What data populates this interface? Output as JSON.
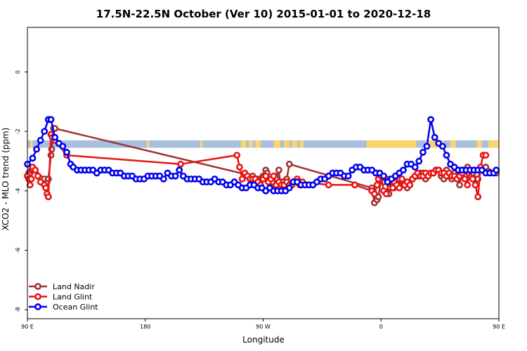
{
  "chart_data": {
    "type": "line",
    "title": "17.5N-22.5N October (Ver 10)   2015-01-01 to 2020-12-18",
    "xlabel": "Longitude",
    "ylabel": "XCO2 - MLO trend (ppm)",
    "xlim": [
      90,
      450
    ],
    "ylim": [
      -8.3,
      1.5
    ],
    "x_ticks": [
      {
        "value": 90,
        "label": "90 E"
      },
      {
        "value": 180,
        "label": "180"
      },
      {
        "value": 270,
        "label": "90 W"
      },
      {
        "value": 360,
        "label": "0"
      },
      {
        "value": 450,
        "label": "90 E"
      }
    ],
    "extra_x_ticks": [
      450
    ],
    "extra_x_labels": [
      "180"
    ],
    "y_ticks": [
      0,
      -2,
      -4,
      -6,
      -8
    ],
    "grid": false,
    "legend_position": "bottom-left",
    "land_mask": {
      "y_range": [
        -2.55,
        -2.3
      ],
      "ocean_color": "#a8bfe0",
      "land_color": "#fbd46e",
      "land_segments": [
        [
          92,
          94
        ],
        [
          181,
          183
        ],
        [
          222,
          224
        ],
        [
          253,
          257
        ],
        [
          259,
          262
        ],
        [
          264,
          268
        ],
        [
          278,
          283
        ],
        [
          286,
          290
        ],
        [
          292,
          296
        ],
        [
          298,
          301
        ],
        [
          349,
          387
        ],
        [
          394,
          408
        ],
        [
          413,
          417
        ],
        [
          433,
          437
        ],
        [
          442,
          450
        ]
      ]
    },
    "series": [
      {
        "name": "Land Nadir",
        "color": "#a03232",
        "x": [
          90,
          91,
          92,
          93,
          94,
          96,
          103,
          105,
          106,
          108,
          108.5,
          110,
          111,
          262,
          263,
          265,
          266,
          267,
          268,
          269,
          270,
          271,
          272,
          273,
          275,
          276,
          277,
          279,
          280,
          282,
          283,
          284,
          285,
          286,
          288,
          290,
          353,
          355,
          357,
          358,
          360,
          362,
          364,
          366,
          367,
          369,
          370,
          372,
          374,
          376,
          378,
          380,
          382,
          384,
          386,
          388,
          390,
          392,
          394,
          396,
          398,
          400,
          402,
          404,
          406,
          408,
          410,
          412,
          414,
          416,
          418,
          420,
          422,
          424,
          426,
          428,
          430,
          432,
          434,
          436,
          440,
          448
        ],
        "y": [
          -3.5,
          -3.4,
          -3.4,
          -3.3,
          -3.3,
          -3.3,
          -3.6,
          -3.7,
          -3.6,
          -2.8,
          -2.6,
          -1.9,
          -1.9,
          -3.5,
          -3.6,
          -3.6,
          -3.7,
          -3.6,
          -3.8,
          -3.6,
          -3.5,
          -3.5,
          -3.3,
          -3.4,
          -3.6,
          -3.8,
          -3.7,
          -3.5,
          -3.6,
          -3.3,
          -3.7,
          -3.8,
          -3.7,
          -3.8,
          -3.6,
          -3.1,
          -3.9,
          -4.4,
          -4.3,
          -4.2,
          -3.6,
          -3.7,
          -3.6,
          -4.1,
          -3.9,
          -3.8,
          -3.9,
          -3.7,
          -3.6,
          -3.8,
          -3.7,
          -3.9,
          -3.8,
          -3.6,
          -3.5,
          -3.5,
          -3.4,
          -3.4,
          -3.6,
          -3.5,
          -3.4,
          -3.4,
          -3.3,
          -3.3,
          -3.5,
          -3.6,
          -3.3,
          -3.5,
          -3.6,
          -3.4,
          -3.6,
          -3.8,
          -3.3,
          -3.5,
          -3.2,
          -3.3,
          -3.4,
          -3.6,
          -3.6,
          -3.3,
          -3.2,
          -3.4
        ]
      },
      {
        "name": "Land Glint",
        "color": "#e81414",
        "x": [
          90,
          91,
          92,
          93,
          94,
          96,
          98,
          100,
          103,
          104,
          105,
          106,
          108,
          109,
          111,
          120,
          207,
          250,
          252,
          254,
          256,
          258,
          260,
          262,
          264,
          266,
          268,
          270,
          272,
          274,
          276,
          278,
          280,
          282,
          284,
          286,
          288,
          290,
          292,
          294,
          296,
          298,
          300,
          320,
          340,
          353,
          355,
          357,
          358,
          360,
          362,
          364,
          366,
          367,
          369,
          370,
          372,
          374,
          376,
          378,
          380,
          382,
          384,
          386,
          388,
          390,
          392,
          394,
          396,
          398,
          400,
          402,
          404,
          406,
          408,
          410,
          412,
          414,
          416,
          418,
          420,
          422,
          424,
          426,
          428,
          430,
          432,
          434,
          436,
          438,
          440
        ],
        "y": [
          -3.5,
          -3.6,
          -3.8,
          -3.6,
          -3.2,
          -3.3,
          -3.5,
          -3.7,
          -3.8,
          -3.9,
          -4.1,
          -4.2,
          -2.1,
          -2.2,
          -2.3,
          -2.8,
          -3.1,
          -2.8,
          -3.2,
          -3.6,
          -3.4,
          -3.5,
          -3.6,
          -3.6,
          -3.6,
          -3.7,
          -3.8,
          -3.6,
          -3.5,
          -3.7,
          -3.6,
          -3.5,
          -3.8,
          -3.7,
          -3.8,
          -3.8,
          -3.7,
          -3.8,
          -3.8,
          -3.7,
          -3.6,
          -3.8,
          -3.7,
          -3.8,
          -3.8,
          -4.0,
          -4.1,
          -3.8,
          -3.6,
          -3.5,
          -4.0,
          -4.1,
          -3.7,
          -3.6,
          -3.9,
          -3.7,
          -3.8,
          -3.9,
          -3.6,
          -3.8,
          -3.7,
          -3.8,
          -3.6,
          -3.5,
          -3.4,
          -3.5,
          -3.5,
          -3.4,
          -3.5,
          -3.4,
          -3.4,
          -3.3,
          -3.3,
          -3.4,
          -3.4,
          -3.5,
          -3.4,
          -3.5,
          -3.5,
          -3.6,
          -3.5,
          -3.4,
          -3.6,
          -3.8,
          -3.3,
          -3.6,
          -3.8,
          -4.2,
          -3.2,
          -2.8,
          -2.8
        ]
      },
      {
        "name": "Ocean Glint",
        "color": "#0000ee",
        "x": [
          90,
          94,
          97,
          100,
          103,
          106,
          108,
          111,
          114,
          117,
          120,
          123,
          125,
          128,
          131,
          134,
          137,
          140,
          143,
          146,
          149,
          152,
          155,
          158,
          161,
          164,
          167,
          170,
          173,
          176,
          179,
          182,
          185,
          188,
          191,
          194,
          197,
          200,
          203,
          206,
          209,
          212,
          215,
          218,
          221,
          224,
          227,
          230,
          233,
          236,
          239,
          242,
          245,
          248,
          251,
          254,
          257,
          260,
          263,
          266,
          269,
          272,
          275,
          278,
          281,
          284,
          287,
          290,
          293,
          296,
          299,
          302,
          305,
          308,
          311,
          314,
          317,
          320,
          323,
          326,
          329,
          332,
          335,
          338,
          341,
          344,
          347,
          350,
          353,
          356,
          359,
          362,
          365,
          368,
          371,
          374,
          377,
          380,
          383,
          386,
          389,
          392,
          395,
          398,
          401,
          404,
          407,
          410,
          413,
          416,
          419,
          422,
          425,
          428,
          431,
          434,
          437,
          440,
          443,
          446,
          448
        ],
        "y": [
          -3.1,
          -2.9,
          -2.6,
          -2.3,
          -2.0,
          -1.6,
          -1.6,
          -2.2,
          -2.4,
          -2.5,
          -2.7,
          -3.1,
          -3.2,
          -3.3,
          -3.3,
          -3.3,
          -3.3,
          -3.3,
          -3.4,
          -3.3,
          -3.3,
          -3.3,
          -3.4,
          -3.4,
          -3.4,
          -3.5,
          -3.5,
          -3.5,
          -3.6,
          -3.6,
          -3.6,
          -3.5,
          -3.5,
          -3.5,
          -3.5,
          -3.6,
          -3.4,
          -3.5,
          -3.5,
          -3.3,
          -3.5,
          -3.6,
          -3.6,
          -3.6,
          -3.6,
          -3.7,
          -3.7,
          -3.7,
          -3.6,
          -3.7,
          -3.7,
          -3.8,
          -3.8,
          -3.7,
          -3.8,
          -3.9,
          -3.9,
          -3.8,
          -3.8,
          -3.9,
          -3.9,
          -4.0,
          -3.9,
          -4.0,
          -4.0,
          -4.0,
          -4.0,
          -3.9,
          -3.7,
          -3.7,
          -3.8,
          -3.8,
          -3.8,
          -3.8,
          -3.7,
          -3.6,
          -3.6,
          -3.5,
          -3.4,
          -3.4,
          -3.4,
          -3.5,
          -3.5,
          -3.3,
          -3.2,
          -3.2,
          -3.3,
          -3.3,
          -3.3,
          -3.4,
          -3.4,
          -3.5,
          -3.7,
          -3.6,
          -3.5,
          -3.4,
          -3.3,
          -3.1,
          -3.1,
          -3.2,
          -3.0,
          -2.7,
          -2.5,
          -1.6,
          -2.2,
          -2.4,
          -2.5,
          -2.8,
          -3.1,
          -3.2,
          -3.3,
          -3.3,
          -3.3,
          -3.3,
          -3.3,
          -3.3,
          -3.3,
          -3.4,
          -3.4,
          -3.4,
          -3.3
        ]
      }
    ]
  }
}
